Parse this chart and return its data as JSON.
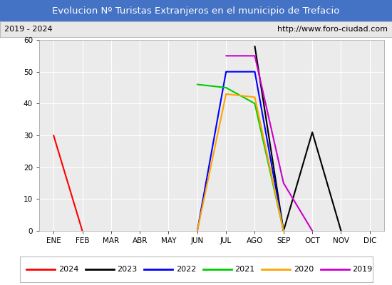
{
  "title": "Evolucion Nº Turistas Extranjeros en el municipio de Trefacio",
  "subtitle_left": "2019 - 2024",
  "subtitle_right": "http://www.foro-ciudad.com",
  "xlabel_months": [
    "ENE",
    "FEB",
    "MAR",
    "ABR",
    "MAY",
    "JUN",
    "JUL",
    "AGO",
    "SEP",
    "OCT",
    "NOV",
    "DIC"
  ],
  "ylim": [
    0,
    60
  ],
  "yticks": [
    0,
    10,
    20,
    30,
    40,
    50,
    60
  ],
  "series": {
    "2024": {
      "color": "#ff0000",
      "data": [
        30,
        0,
        null,
        null,
        null,
        null,
        null,
        null,
        null,
        null,
        null,
        null
      ]
    },
    "2023": {
      "color": "#000000",
      "data": [
        null,
        null,
        null,
        null,
        null,
        null,
        null,
        58,
        0,
        31,
        0,
        null
      ]
    },
    "2022": {
      "color": "#0000ff",
      "data": [
        null,
        null,
        null,
        null,
        null,
        0,
        50,
        50,
        0,
        null,
        null,
        null
      ]
    },
    "2021": {
      "color": "#00cc00",
      "data": [
        null,
        null,
        null,
        null,
        null,
        46,
        45,
        40,
        0,
        null,
        null,
        null
      ]
    },
    "2020": {
      "color": "#ffa500",
      "data": [
        null,
        null,
        null,
        null,
        null,
        0,
        43,
        42,
        0,
        null,
        null,
        null
      ]
    },
    "2019": {
      "color": "#cc00cc",
      "data": [
        null,
        null,
        null,
        null,
        null,
        null,
        55,
        55,
        15,
        0,
        null,
        null
      ]
    }
  },
  "title_bg_color": "#4472c4",
  "title_font_color": "#ffffff",
  "subtitle_bg_color": "#e8e8e8",
  "plot_bg_color": "#ebebeb",
  "grid_color": "#ffffff",
  "legend_order": [
    "2024",
    "2023",
    "2022",
    "2021",
    "2020",
    "2019"
  ],
  "fig_width": 5.5,
  "fig_height": 4.0,
  "dpi": 100
}
